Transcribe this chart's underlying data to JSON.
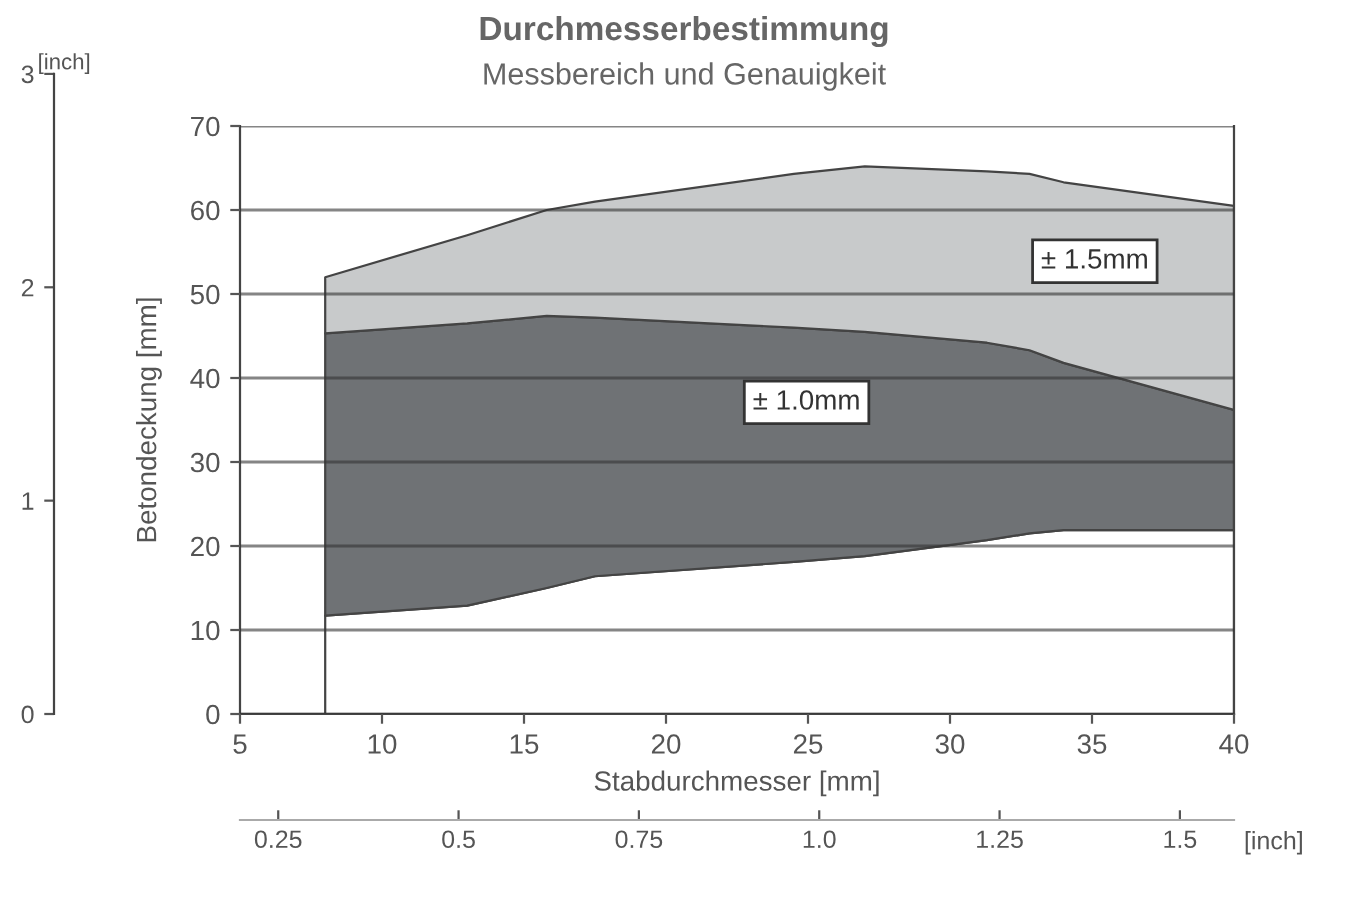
{
  "chart_data": {
    "type": "area",
    "title": "Durchmesserbestimmung",
    "subtitle": "Messbereich und Genauigkeit",
    "xlabel": "Stabdurchmesser [mm]",
    "ylabel": "Betondeckung [mm]",
    "y2label": "[inch]",
    "x2label": "[inch]",
    "x": [
      8,
      13,
      15.8,
      17.5,
      24.5,
      27,
      31.3,
      32.8,
      34,
      40
    ],
    "series": [
      {
        "color": "#ffffff",
        "values": [
          11.7,
          12.9,
          15,
          16.4,
          18.1,
          18.8,
          20.7,
          21.5,
          21.9,
          21.9
        ]
      },
      {
        "name": "± 1.0mm",
        "color": "#6f7275",
        "values": [
          33.6,
          33.6,
          32.4,
          30.8,
          27.9,
          26.7,
          23.5,
          21.8,
          19.9,
          14.3
        ]
      },
      {
        "name": "± 1.5mm",
        "color": "#c8cacb",
        "values": [
          6.7,
          10.5,
          12.6,
          13.8,
          18.3,
          19.7,
          20.4,
          21,
          21.5,
          24.3
        ]
      }
    ],
    "stacked": true,
    "xlim": [
      5,
      40
    ],
    "xticks": [
      5,
      10,
      15,
      20,
      25,
      30,
      35,
      40
    ],
    "ylim": [
      0,
      70
    ],
    "yticks": [
      0,
      10,
      20,
      30,
      40,
      50,
      60,
      70
    ],
    "y2lim": [
      0,
      3
    ],
    "y2ticks": [
      0,
      1,
      2,
      3
    ],
    "x2lim": [
      0.197,
      1.575
    ],
    "x2ticks": [
      0.25,
      0.5,
      0.75,
      {
        "value": 1.0,
        "label": "1.0"
      },
      1.25,
      1.5
    ],
    "grid": "y",
    "legend": false
  }
}
